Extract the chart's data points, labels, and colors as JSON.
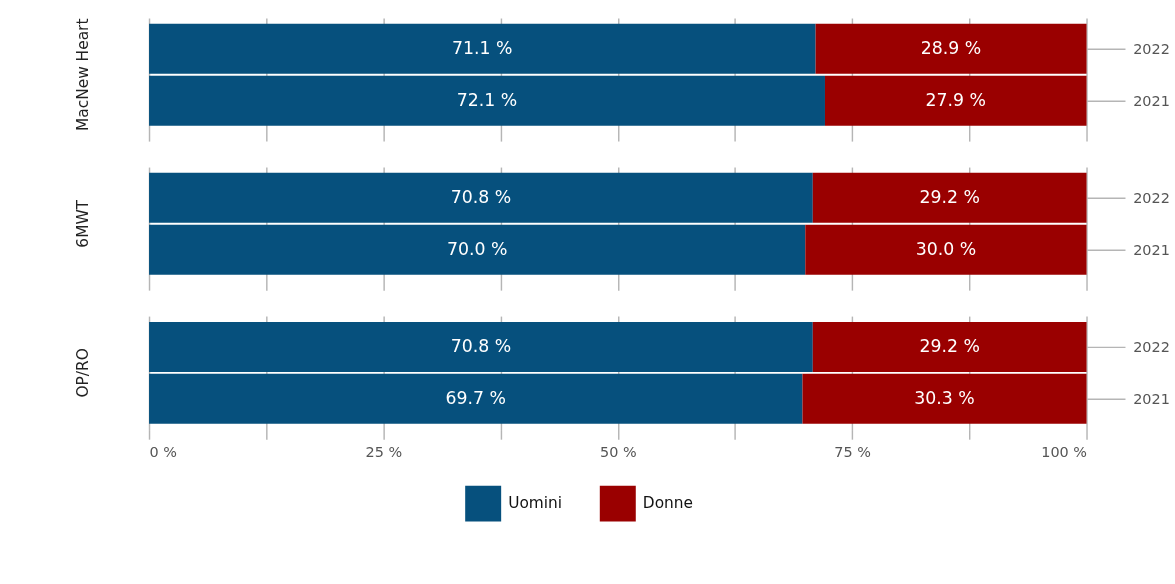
{
  "chart_data": [
    {
      "type": "bar",
      "orientation": "horizontal",
      "stacked": true,
      "ylabel": "MacNew Heart",
      "categories": [
        "2022",
        "2021"
      ],
      "series": [
        {
          "name": "Uomini",
          "color": "#06507d",
          "values": [
            71.1,
            72.1
          ],
          "value_labels": [
            "71.1 %",
            "72.1 %"
          ]
        },
        {
          "name": "Donne",
          "color": "#9a0000",
          "values": [
            28.9,
            27.9
          ],
          "value_labels": [
            "28.9 %",
            "27.9 %"
          ]
        }
      ],
      "xlim": [
        0,
        100
      ],
      "xticks": [
        {
          "value": 0,
          "label": null
        },
        {
          "value": 12.5,
          "label": null
        },
        {
          "value": 25,
          "label": null
        },
        {
          "value": 37.5,
          "label": null
        },
        {
          "value": 50,
          "label": null
        },
        {
          "value": 62.5,
          "label": null
        },
        {
          "value": 75,
          "label": null
        },
        {
          "value": 87.5,
          "label": null
        },
        {
          "value": 100,
          "label": null
        }
      ],
      "grid": "x",
      "tick_labels": "y",
      "legend": "bottom"
    },
    {
      "type": "bar",
      "orientation": "horizontal",
      "stacked": true,
      "ylabel": "6MWT",
      "categories": [
        "2022",
        "2021"
      ],
      "series": [
        {
          "color": "#06507d",
          "values": [
            70.8,
            70.0
          ],
          "value_labels": [
            "70.8 %",
            "70.0 %"
          ]
        },
        {
          "color": "#9a0000",
          "values": [
            29.2,
            30.0
          ],
          "value_labels": [
            "29.2 %",
            "30.0 %"
          ]
        }
      ],
      "xlim": [
        0,
        100
      ],
      "xticks": [
        {
          "value": 0,
          "label": null
        },
        {
          "value": 12.5,
          "label": null
        },
        {
          "value": 25,
          "label": null
        },
        {
          "value": 37.5,
          "label": null
        },
        {
          "value": 50,
          "label": null
        },
        {
          "value": 62.5,
          "label": null
        },
        {
          "value": 75,
          "label": null
        },
        {
          "value": 87.5,
          "label": null
        },
        {
          "value": 100,
          "label": null
        }
      ],
      "grid": "x",
      "tick_labels": "y"
    },
    {
      "type": "bar",
      "orientation": "horizontal",
      "stacked": true,
      "ylabel": "OP/RO",
      "categories": [
        "2022",
        "2021"
      ],
      "series": [
        {
          "color": "#06507d",
          "values": [
            70.8,
            69.7
          ],
          "value_labels": [
            "70.8 %",
            "69.7 %"
          ]
        },
        {
          "color": "#9a0000",
          "values": [
            29.2,
            30.3
          ],
          "value_labels": [
            "29.2 %",
            "30.3 %"
          ]
        }
      ],
      "xlim": [
        0,
        100
      ],
      "xticks": [
        {
          "value": 0,
          "label": "0 %"
        },
        {
          "value": 12.5,
          "label": null
        },
        {
          "value": 25,
          "label": "25 %"
        },
        {
          "value": 37.5,
          "label": null
        },
        {
          "value": 50,
          "label": "50 %"
        },
        {
          "value": 62.5,
          "label": null
        },
        {
          "value": 75,
          "label": "75 %"
        },
        {
          "value": 87.5,
          "label": null
        },
        {
          "value": 100,
          "label": "100 %"
        }
      ],
      "grid": "x"
    }
  ]
}
